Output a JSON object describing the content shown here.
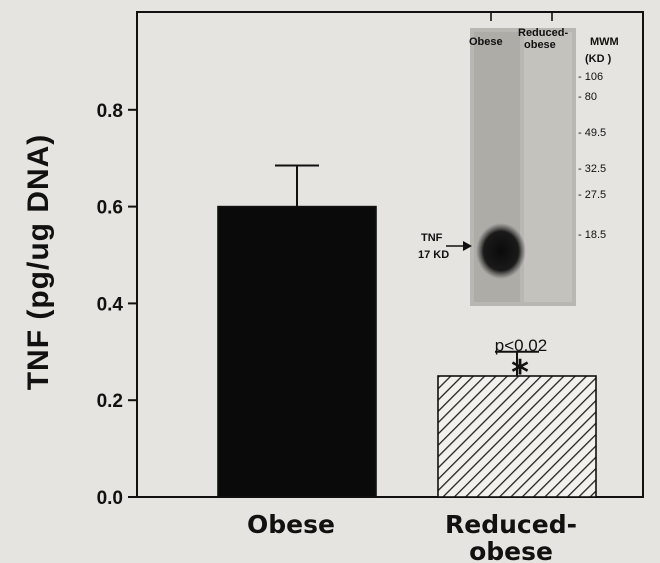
{
  "chart_data": {
    "type": "bar",
    "ylabel": "TNF (pg/ug DNA)",
    "xlabel": "",
    "ylim": [
      0,
      1.0
    ],
    "yticks": [
      0.0,
      0.2,
      0.4,
      0.6,
      0.8
    ],
    "ytick_labels": [
      "0.0",
      "0.2",
      "0.4",
      "0.6",
      "0.8"
    ],
    "categories": [
      "Obese",
      "Reduced-obese"
    ],
    "category_labels": [
      [
        "Obese"
      ],
      [
        "Reduced-",
        "obese"
      ]
    ],
    "values": [
      0.6,
      0.25
    ],
    "errors": [
      0.085,
      0.05
    ],
    "bar_fills": [
      "solid",
      "hatched"
    ],
    "colors": {
      "solid": "#0a0a0a",
      "hatch": "#222222",
      "background": "#e6e4e0"
    },
    "annotations": {
      "significance": "p<0.02",
      "marker": "*"
    },
    "inset": {
      "type": "western-blot",
      "lane_labels": [
        "Obese",
        "Reduced-obese"
      ],
      "lane_label_lines": [
        "Obese",
        "Reduced-",
        "obese"
      ],
      "marker_header": [
        "MWM",
        "(KD )"
      ],
      "markers": [
        "106",
        "80",
        "49.5",
        "32.5",
        "27.5",
        "18.5"
      ],
      "band_label": [
        "TNF",
        "17 KD"
      ]
    }
  }
}
